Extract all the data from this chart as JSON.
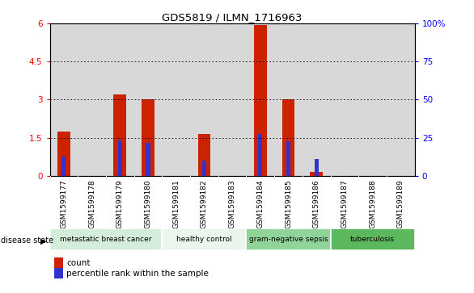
{
  "title": "GDS5819 / ILMN_1716963",
  "samples": [
    "GSM1599177",
    "GSM1599178",
    "GSM1599179",
    "GSM1599180",
    "GSM1599181",
    "GSM1599182",
    "GSM1599183",
    "GSM1599184",
    "GSM1599185",
    "GSM1599186",
    "GSM1599187",
    "GSM1599188",
    "GSM1599189"
  ],
  "count_values": [
    1.75,
    0,
    3.2,
    3.0,
    0,
    1.65,
    0,
    5.95,
    3.0,
    0.15,
    0,
    0,
    0
  ],
  "percentile_values": [
    0.75,
    0,
    1.4,
    1.3,
    0,
    0.6,
    0,
    1.65,
    1.35,
    0.65,
    0,
    0,
    0
  ],
  "bar_color": "#cc2200",
  "percentile_color": "#3333cc",
  "ylim": [
    0,
    6
  ],
  "yticks_left": [
    0,
    1.5,
    3.0,
    4.5,
    6
  ],
  "yticks_left_labels": [
    "0",
    "1.5",
    "3",
    "4.5",
    "6"
  ],
  "yticks_right": [
    0,
    25,
    50,
    75,
    100
  ],
  "yticks_right_labels": [
    "0",
    "25",
    "50",
    "75",
    "100%"
  ],
  "gridlines": [
    1.5,
    3.0,
    4.5
  ],
  "disease_groups": [
    {
      "label": "metastatic breast cancer",
      "start": 0,
      "end": 4,
      "color": "#d4edda"
    },
    {
      "label": "healthy control",
      "start": 4,
      "end": 7,
      "color": "#eaf6eb"
    },
    {
      "label": "gram-negative sepsis",
      "start": 7,
      "end": 10,
      "color": "#90d49a"
    },
    {
      "label": "tuberculosis",
      "start": 10,
      "end": 13,
      "color": "#5cb85c"
    }
  ],
  "disease_state_label": "disease state",
  "legend_count_label": "count",
  "legend_percentile_label": "percentile rank within the sample",
  "bar_width": 0.45,
  "percentile_bar_width": 0.15,
  "col_bg_color": "#d8d8d8",
  "plot_bg_color": "#ffffff",
  "spine_color": "#000000"
}
